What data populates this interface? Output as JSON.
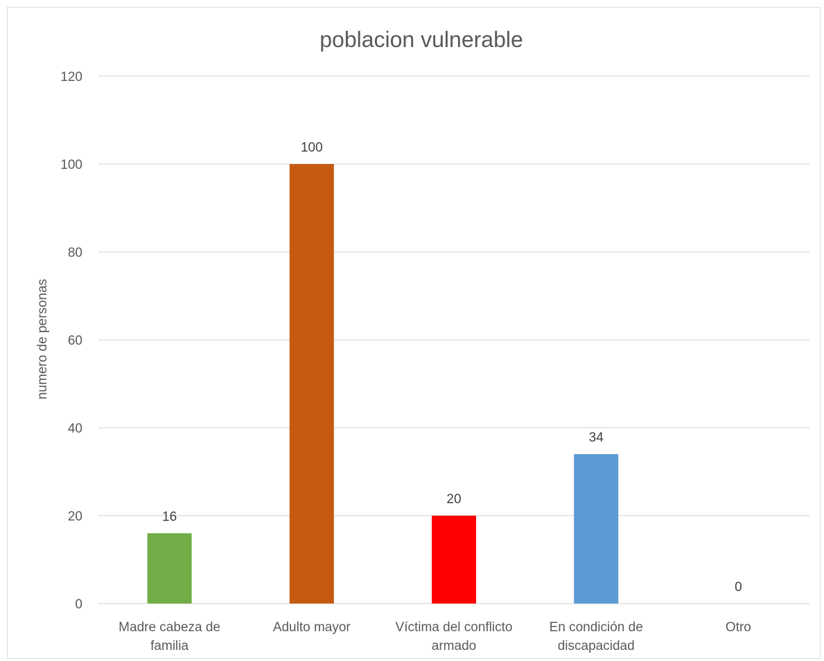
{
  "chart_data": {
    "type": "bar",
    "title": "poblacion vulnerable",
    "xlabel": "",
    "ylabel": "numero de personas",
    "ylim": [
      0,
      120
    ],
    "yticks": [
      0,
      20,
      40,
      60,
      80,
      100,
      120
    ],
    "grid": true,
    "legend": "none",
    "categories": [
      [
        "Madre cabeza de",
        "familia"
      ],
      [
        "Adulto mayor"
      ],
      [
        "Víctima del conflicto",
        "armado"
      ],
      [
        "En condición de",
        "discapacidad"
      ],
      [
        "Otro"
      ]
    ],
    "values": [
      16,
      100,
      20,
      34,
      0
    ],
    "colors": [
      "#70ad47",
      "#c55a11",
      "#ff0000",
      "#5b9bd5",
      "#a5a5a5"
    ],
    "gridline_color": "#d9d9d9",
    "axis_color": "#d9d9d9"
  }
}
